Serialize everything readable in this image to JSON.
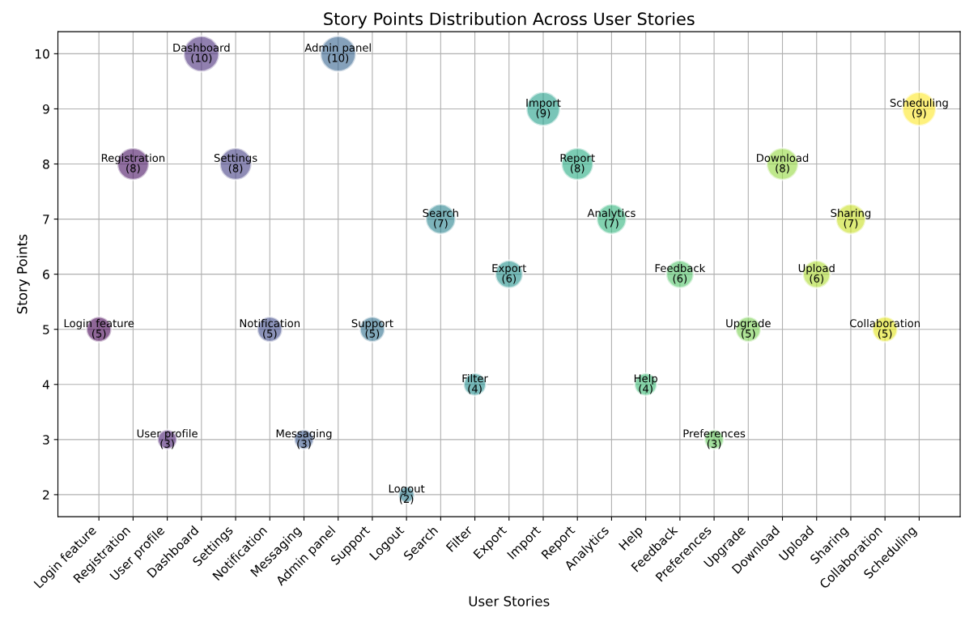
{
  "chart_data": {
    "type": "bubble",
    "title": "Story Points Distribution Across User Stories",
    "xlabel": "User Stories",
    "ylabel": "Story Points",
    "categories": [
      "Login feature",
      "Registration",
      "User profile",
      "Dashboard",
      "Settings",
      "Notification",
      "Messaging",
      "Admin panel",
      "Support",
      "Logout",
      "Search",
      "Filter",
      "Export",
      "Import",
      "Report",
      "Analytics",
      "Help",
      "Feedback",
      "Preferences",
      "Upgrade",
      "Download",
      "Upload",
      "Sharing",
      "Collaboration",
      "Scheduling"
    ],
    "values": [
      5,
      8,
      3,
      10,
      8,
      5,
      3,
      10,
      5,
      2,
      7,
      4,
      6,
      9,
      8,
      7,
      4,
      6,
      3,
      5,
      8,
      6,
      7,
      5,
      9
    ],
    "sizes": [
      0.5,
      0.8,
      0.3,
      1,
      0.8,
      0.5,
      0.3,
      1,
      0.5,
      0.2,
      0.7,
      0.4,
      0.6,
      0.9,
      0.8,
      0.7,
      0.4,
      0.6,
      0.3,
      0.5,
      0.8,
      0.6,
      0.7,
      0.5,
      0.9
    ],
    "value_labels": [
      "(5)",
      "(8)",
      "(3)",
      "(10)",
      "(8)",
      "(5)",
      "(3)",
      "(10)",
      "(5)",
      "(2)",
      "(7)",
      "(4)",
      "(6)",
      "(9)",
      "(8)",
      "(7)",
      "(4)",
      "(6)",
      "(3)",
      "(5)",
      "(8)",
      "(6)",
      "(7)",
      "(5)",
      "(9)"
    ],
    "colors": [
      "#440154",
      "#471063",
      "#481d6f",
      "#472c7a",
      "#433d84",
      "#3e4a89",
      "#39568c",
      "#33638d",
      "#2e6f8e",
      "#2a7b8e",
      "#26828e",
      "#228d8d",
      "#21918c",
      "#1f9e89",
      "#25ab82",
      "#2fb47c",
      "#3bbb75",
      "#52c569",
      "#65cb5e",
      "#7ad151",
      "#95d840",
      "#addc30",
      "#c8e020",
      "#e2e418",
      "#fde725"
    ],
    "ylim": [
      1.6,
      10.4
    ],
    "yticks": [
      2,
      3,
      4,
      5,
      6,
      7,
      8,
      9,
      10
    ],
    "grid": true
  }
}
